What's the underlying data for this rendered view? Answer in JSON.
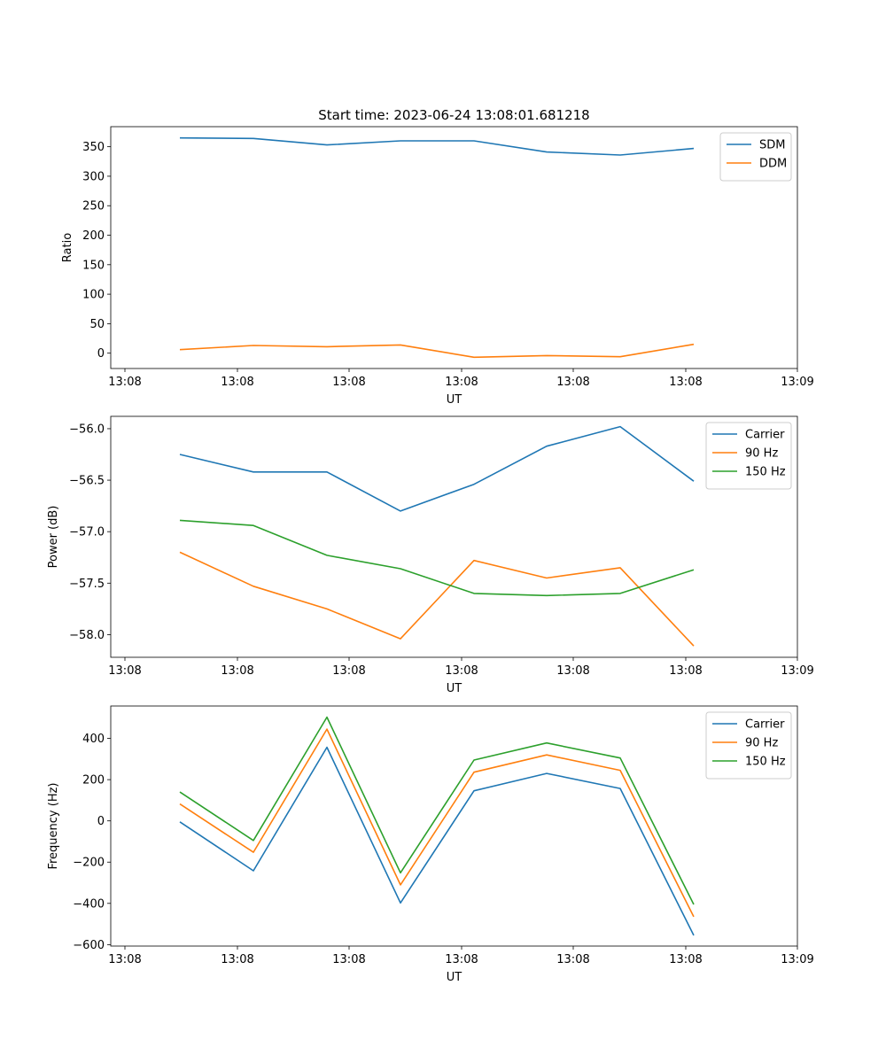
{
  "title": "Start time: 2023-06-24 13:08:01.681218",
  "colors": {
    "blue": "#1f77b4",
    "orange": "#ff7f0e",
    "green": "#2ca02c"
  },
  "chart_data": [
    {
      "type": "line",
      "xlabel": "UT",
      "ylabel": "Ratio",
      "x_tick_labels": [
        "13:08",
        "13:08",
        "13:08",
        "13:08",
        "13:08",
        "13:08",
        "13:08",
        "13:09"
      ],
      "y_ticks": [
        0,
        50,
        100,
        150,
        200,
        250,
        300,
        350
      ],
      "ylim": [
        -26,
        384
      ],
      "legend_position": "top-right",
      "series": [
        {
          "name": "SDM",
          "color": "#1f77b4",
          "values": [
            365,
            364,
            353,
            360,
            360,
            341,
            336,
            347
          ]
        },
        {
          "name": "DDM",
          "color": "#ff7f0e",
          "values": [
            6,
            13,
            11,
            14,
            -7,
            -4,
            -6,
            15
          ]
        }
      ]
    },
    {
      "type": "line",
      "xlabel": "UT",
      "ylabel": "Power (dB)",
      "x_tick_labels": [
        "13:08",
        "13:08",
        "13:08",
        "13:08",
        "13:08",
        "13:08",
        "13:08",
        "13:09"
      ],
      "y_ticks": [
        -58.0,
        -57.5,
        -57.0,
        -56.5,
        -56.0
      ],
      "y_tick_labels": [
        "−58.0",
        "−57.5",
        "−57.0",
        "−56.5",
        "−56.0"
      ],
      "ylim": [
        -58.22,
        -55.88
      ],
      "legend_position": "top-right",
      "series": [
        {
          "name": "Carrier",
          "color": "#1f77b4",
          "values": [
            -56.25,
            -56.42,
            -56.42,
            -56.8,
            -56.54,
            -56.17,
            -55.98,
            -56.51
          ]
        },
        {
          "name": "90 Hz",
          "color": "#ff7f0e",
          "values": [
            -57.2,
            -57.53,
            -57.75,
            -58.04,
            -57.28,
            -57.45,
            -57.35,
            -58.11
          ]
        },
        {
          "name": "150 Hz",
          "color": "#2ca02c",
          "values": [
            -56.89,
            -56.94,
            -57.23,
            -57.36,
            -57.6,
            -57.62,
            -57.6,
            -57.37
          ]
        }
      ]
    },
    {
      "type": "line",
      "xlabel": "UT",
      "ylabel": "Frequency (Hz)",
      "x_tick_labels": [
        "13:08",
        "13:08",
        "13:08",
        "13:08",
        "13:08",
        "13:08",
        "13:08",
        "13:09"
      ],
      "y_ticks": [
        -600,
        -400,
        -200,
        0,
        200,
        400
      ],
      "y_tick_labels": [
        "−600",
        "−400",
        "−200",
        "0",
        "200",
        "400"
      ],
      "ylim": [
        -607,
        557
      ],
      "legend_position": "top-right",
      "series": [
        {
          "name": "Carrier",
          "color": "#1f77b4",
          "values": [
            -5,
            -242,
            357,
            -398,
            146,
            230,
            157,
            -555
          ]
        },
        {
          "name": "90 Hz",
          "color": "#ff7f0e",
          "values": [
            82,
            -152,
            445,
            -310,
            236,
            320,
            245,
            -465
          ]
        },
        {
          "name": "150 Hz",
          "color": "#2ca02c",
          "values": [
            140,
            -95,
            503,
            -252,
            295,
            378,
            305,
            -405
          ]
        }
      ]
    }
  ]
}
